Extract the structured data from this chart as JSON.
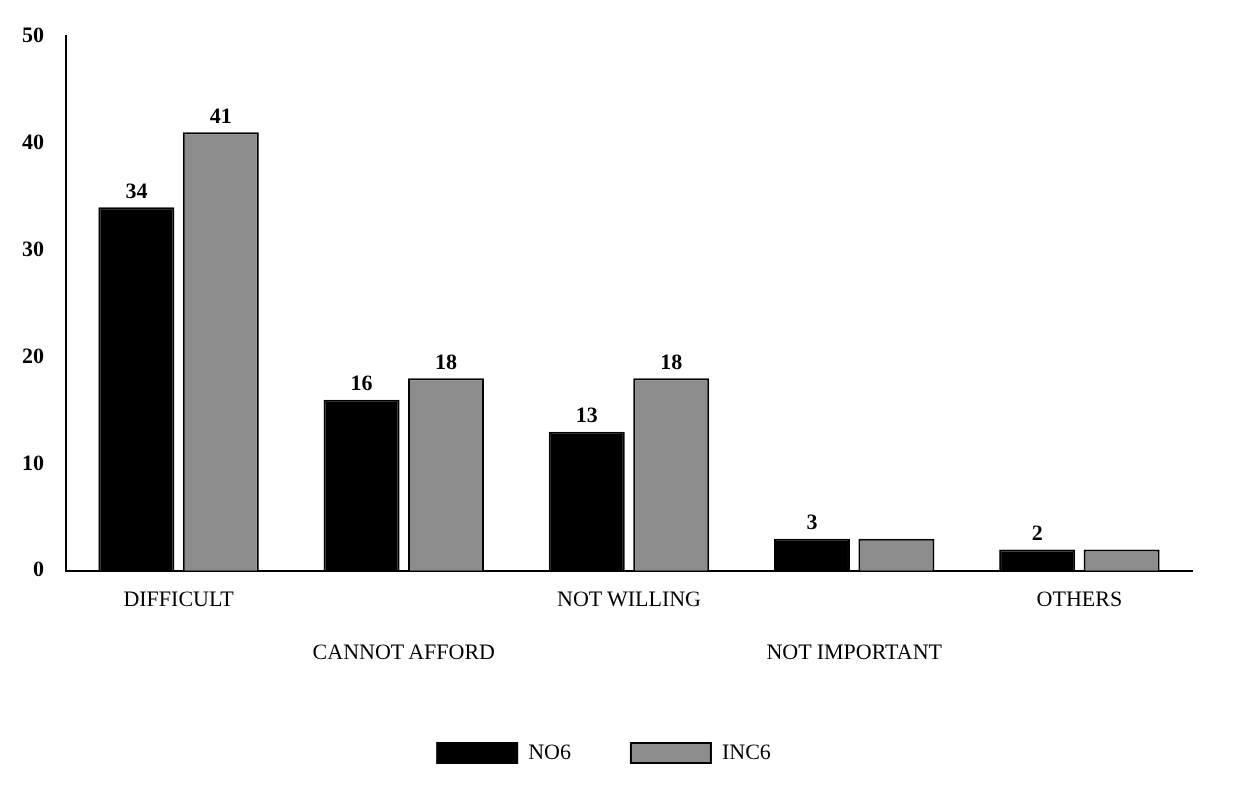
{
  "chart_data": {
    "type": "bar",
    "categories": [
      "DIFFICULT",
      "CANNOT AFFORD",
      "NOT WILLING",
      "NOT IMPORTANT",
      "OTHERS"
    ],
    "series": [
      {
        "name": "NO6",
        "color": "#000000",
        "values": [
          34,
          16,
          13,
          3,
          2
        ],
        "value_labels": [
          "34",
          "16",
          "13",
          "3",
          "2"
        ]
      },
      {
        "name": "INC6",
        "color": "#8c8c8c",
        "values": [
          41,
          18,
          18,
          3,
          2
        ],
        "value_labels": [
          "41",
          "18",
          "18",
          null,
          null
        ]
      }
    ],
    "ylim": [
      0,
      50
    ],
    "yticks": [
      0,
      10,
      20,
      30,
      40,
      50
    ],
    "grid": false,
    "legend": "bottom"
  }
}
